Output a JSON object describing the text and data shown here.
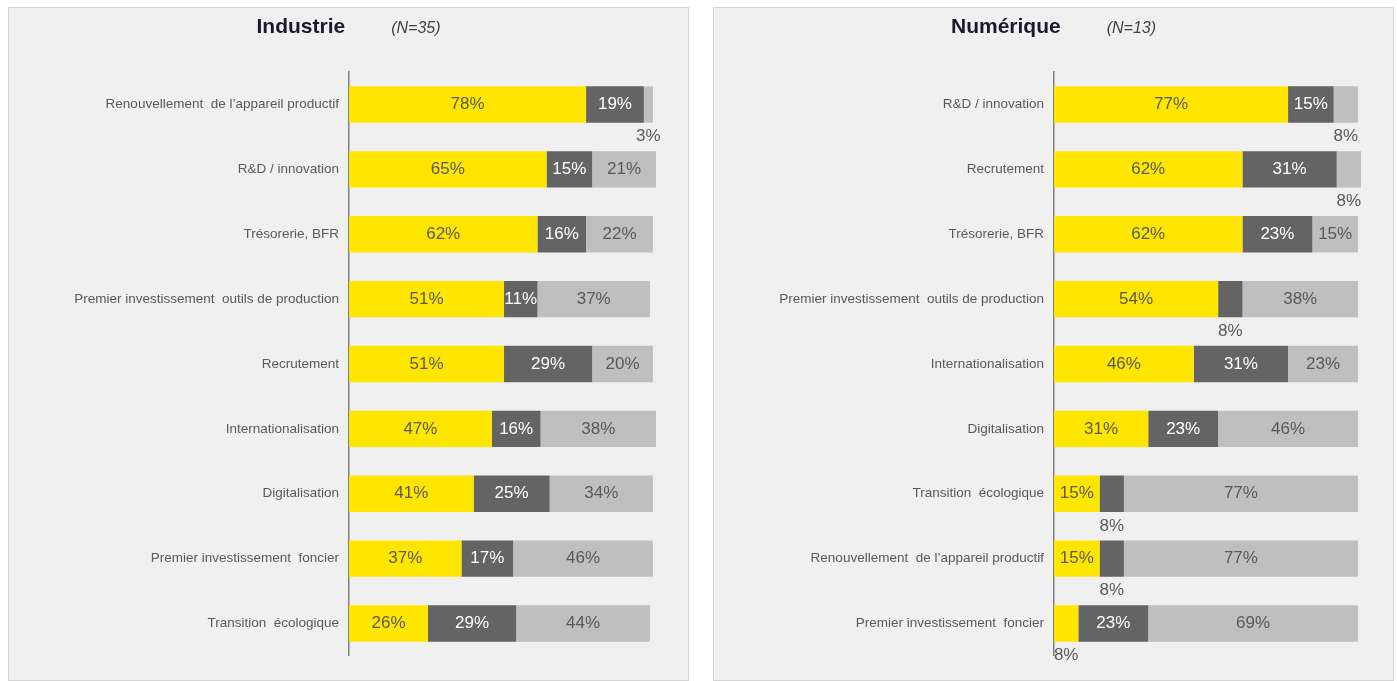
{
  "chart_data": [
    {
      "type": "bar",
      "title": "Industrie",
      "subtitle": "(N=35)",
      "orientation": "horizontal",
      "stacked": true,
      "grid": false,
      "legend": false,
      "tick_labels": "y",
      "categories": [
        "Renouvellement  de l’appareil productif",
        "R&D / innovation",
        "Trésorerie, BFR",
        "Premier investissement  outils de production",
        "Recrutement",
        "Internationalisation",
        "Digitalisation",
        "Premier investissement  foncier",
        "Transition  écologique"
      ],
      "series": [
        {
          "color": "#ffe600",
          "values": [
            78,
            65,
            62,
            51,
            51,
            47,
            41,
            37,
            26
          ],
          "value_labels": [
            "78%",
            "65%",
            "62%",
            "51%",
            "51%",
            "47%",
            "41%",
            "37%",
            "26%"
          ]
        },
        {
          "color": "#646464",
          "values": [
            19,
            15,
            16,
            11,
            29,
            16,
            25,
            17,
            29
          ],
          "value_labels": [
            "19%",
            "15%",
            "16%",
            "11%",
            "29%",
            "16%",
            "25%",
            "17%",
            "29%"
          ]
        },
        {
          "color": "#bfbfbf",
          "values": [
            3,
            21,
            22,
            37,
            20,
            38,
            34,
            46,
            44
          ],
          "value_labels": [
            "3%",
            "21%",
            "22%",
            "37%",
            "20%",
            "38%",
            "34%",
            "46%",
            "44%"
          ]
        }
      ]
    },
    {
      "type": "bar",
      "title": "Numérique",
      "subtitle": "(N=13)",
      "orientation": "horizontal",
      "stacked": true,
      "grid": false,
      "legend": false,
      "tick_labels": "y",
      "categories": [
        "R&D / innovation",
        "Recrutement",
        "Trésorerie, BFR",
        "Premier investissement  outils de production",
        "Internationalisation",
        "Digitalisation",
        "Transition  écologique",
        "Renouvellement  de l’appareil productif",
        "Premier investissement  foncier"
      ],
      "series": [
        {
          "color": "#ffe600",
          "values": [
            77,
            62,
            62,
            54,
            46,
            31,
            15,
            15,
            8
          ],
          "value_labels": [
            "77%",
            "62%",
            "62%",
            "54%",
            "46%",
            "31%",
            "15%",
            "15%",
            "8%"
          ]
        },
        {
          "color": "#646464",
          "values": [
            15,
            31,
            23,
            8,
            31,
            23,
            8,
            8,
            23
          ],
          "value_labels": [
            "15%",
            "31%",
            "23%",
            "8%",
            "31%",
            "23%",
            "8%",
            "8%",
            "23%"
          ]
        },
        {
          "color": "#bfbfbf",
          "values": [
            8,
            8,
            15,
            38,
            23,
            46,
            77,
            77,
            69
          ],
          "value_labels": [
            "8%",
            "8%",
            "15%",
            "38%",
            "23%",
            "46%",
            "77%",
            "77%",
            "69%"
          ]
        }
      ]
    }
  ]
}
